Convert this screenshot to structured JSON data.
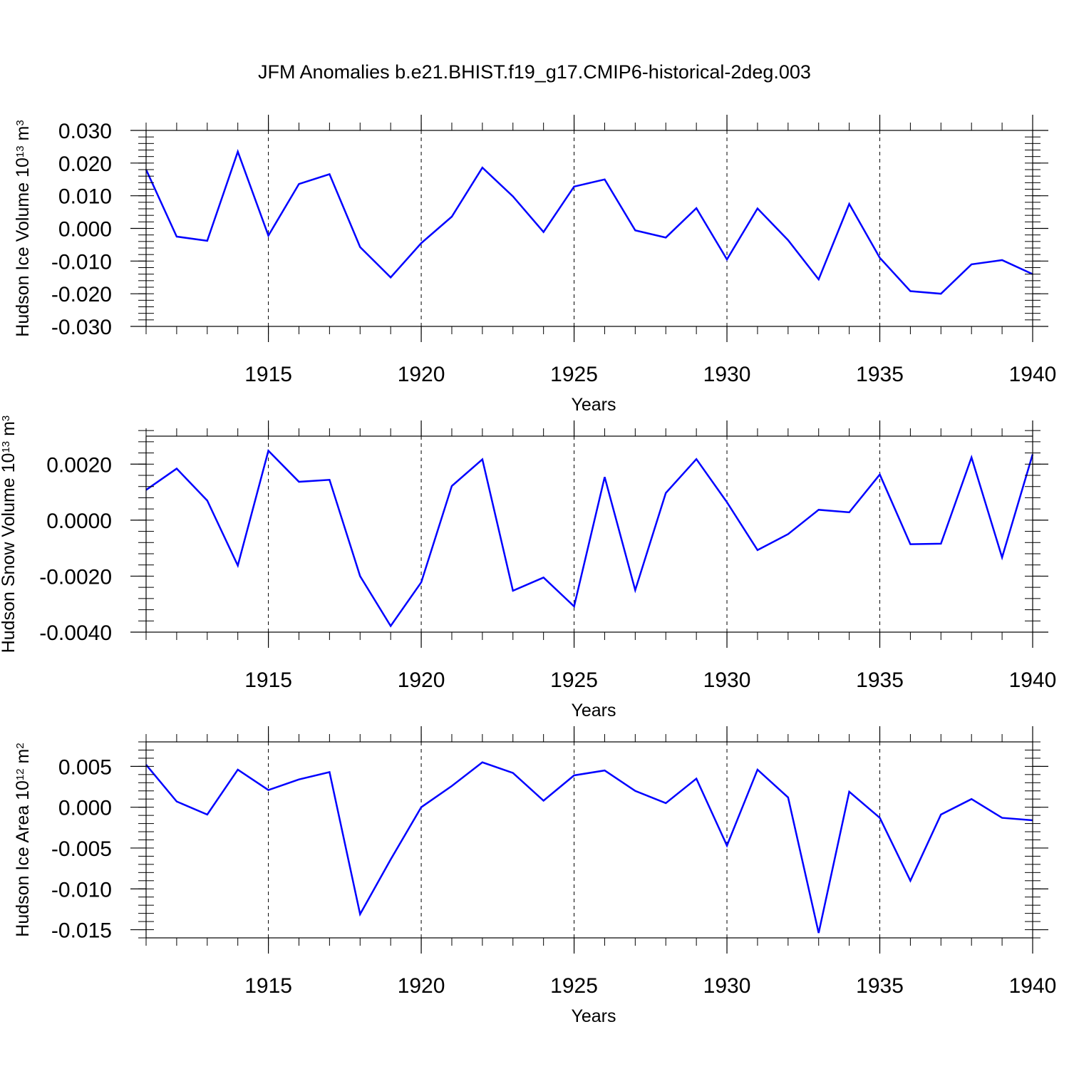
{
  "figure": {
    "title": "JFM Anomalies b.e21.BHIST.f19_g17.CMIP6-historical-2deg.003"
  },
  "chart_data": [
    {
      "type": "line",
      "ylabel_main": "Hudson Ice Volume 10",
      "ylabel_exp": "13",
      "ylabel_unit": "m",
      "ylabel_unit_exp": "3",
      "xlabel": "Years",
      "xlim": [
        1911,
        1940
      ],
      "ylim": [
        -0.03,
        0.03
      ],
      "yticks": [
        0.03,
        0.02,
        0.01,
        0.0,
        -0.01,
        -0.02,
        -0.03
      ],
      "ytick_labels": [
        "0.030",
        "0.020",
        "0.010",
        "0.000",
        "-0.010",
        "-0.020",
        "-0.030"
      ],
      "yminor_step": 0.002,
      "xticks": [
        1915,
        1920,
        1925,
        1930,
        1935,
        1940
      ],
      "xtick_labels": [
        "1915",
        "1920",
        "1925",
        "1930",
        "1935",
        "1940"
      ],
      "grid": "vertical dashed at major x ticks",
      "line_color": "#0000ff",
      "series": [
        {
          "x": [
            1911,
            1912,
            1913,
            1914,
            1915,
            1916,
            1917,
            1918,
            1919,
            1920,
            1921,
            1922,
            1923,
            1924,
            1925,
            1926,
            1927,
            1928,
            1929,
            1930,
            1931,
            1932,
            1933,
            1934,
            1935,
            1936,
            1937,
            1938,
            1939,
            1940
          ],
          "values": [
            0.018,
            -0.0025,
            -0.0038,
            0.0235,
            -0.0022,
            0.0136,
            0.0166,
            -0.0057,
            -0.015,
            -0.0045,
            0.0036,
            0.0186,
            0.0098,
            -0.0011,
            0.0128,
            0.015,
            -0.0006,
            -0.0028,
            0.0062,
            -0.0095,
            0.0061,
            -0.0036,
            -0.0156,
            0.0075,
            -0.009,
            -0.0192,
            -0.02,
            -0.011,
            -0.0097,
            -0.014
          ]
        }
      ]
    },
    {
      "type": "line",
      "ylabel_main": "Hudson Snow Volume 10",
      "ylabel_exp": "13",
      "ylabel_unit": "m",
      "ylabel_unit_exp": "3",
      "xlabel": "Years",
      "xlim": [
        1911,
        1940
      ],
      "ylim": [
        -0.004,
        0.003
      ],
      "yticks": [
        0.002,
        0.0,
        -0.002,
        -0.004
      ],
      "ytick_labels": [
        "0.0020",
        "0.0000",
        "-0.0020",
        "-0.0040"
      ],
      "yminor_step": 0.0004,
      "xticks": [
        1915,
        1920,
        1925,
        1930,
        1935,
        1940
      ],
      "xtick_labels": [
        "1915",
        "1920",
        "1925",
        "1930",
        "1935",
        "1940"
      ],
      "grid": "vertical dashed at major x ticks",
      "line_color": "#0000ff",
      "series": [
        {
          "x": [
            1911,
            1912,
            1913,
            1914,
            1915,
            1916,
            1917,
            1918,
            1919,
            1920,
            1921,
            1922,
            1923,
            1924,
            1925,
            1926,
            1927,
            1928,
            1929,
            1930,
            1931,
            1932,
            1933,
            1934,
            1935,
            1936,
            1937,
            1938,
            1939,
            1940
          ],
          "values": [
            0.00108,
            0.00184,
            0.0007,
            -0.00162,
            0.00248,
            0.00137,
            0.00144,
            -0.002,
            -0.00378,
            -0.00222,
            0.00122,
            0.00217,
            -0.00252,
            -0.00205,
            -0.00308,
            0.00154,
            -0.0025,
            0.00097,
            0.00218,
            0.00064,
            -0.00107,
            -0.0005,
            0.00037,
            0.00028,
            0.00163,
            -0.00086,
            -0.00084,
            0.00224,
            -0.00133,
            0.00235
          ]
        }
      ]
    },
    {
      "type": "line",
      "ylabel_main": "Hudson Ice Area 10",
      "ylabel_exp": "12",
      "ylabel_unit": "m",
      "ylabel_unit_exp": "2",
      "xlabel": "Years",
      "xlim": [
        1911,
        1940
      ],
      "ylim": [
        -0.016,
        0.008
      ],
      "yticks": [
        0.005,
        0.0,
        -0.005,
        -0.01,
        -0.015
      ],
      "ytick_labels": [
        "0.005",
        "0.000",
        "-0.005",
        "-0.010",
        "-0.015"
      ],
      "yminor_step": 0.001,
      "xticks": [
        1915,
        1920,
        1925,
        1930,
        1935,
        1940
      ],
      "xtick_labels": [
        "1915",
        "1920",
        "1925",
        "1930",
        "1935",
        "1940"
      ],
      "grid": "vertical dashed at major x ticks",
      "line_color": "#0000ff",
      "series": [
        {
          "x": [
            1911,
            1912,
            1913,
            1914,
            1915,
            1916,
            1917,
            1918,
            1919,
            1920,
            1921,
            1922,
            1923,
            1924,
            1925,
            1926,
            1927,
            1928,
            1929,
            1930,
            1931,
            1932,
            1933,
            1934,
            1935,
            1936,
            1937,
            1938,
            1939,
            1940
          ],
          "values": [
            0.0052,
            0.0007,
            -0.0009,
            0.0046,
            0.0021,
            0.0034,
            0.0043,
            -0.0131,
            -0.0064,
            0.0,
            0.0026,
            0.0055,
            0.0042,
            0.0008,
            0.0039,
            0.0045,
            0.002,
            0.0005,
            0.0035,
            -0.0047,
            0.0046,
            0.0012,
            -0.0154,
            0.0019,
            -0.0013,
            -0.009,
            -0.0009,
            0.001,
            -0.0013,
            -0.0016
          ]
        }
      ]
    }
  ]
}
